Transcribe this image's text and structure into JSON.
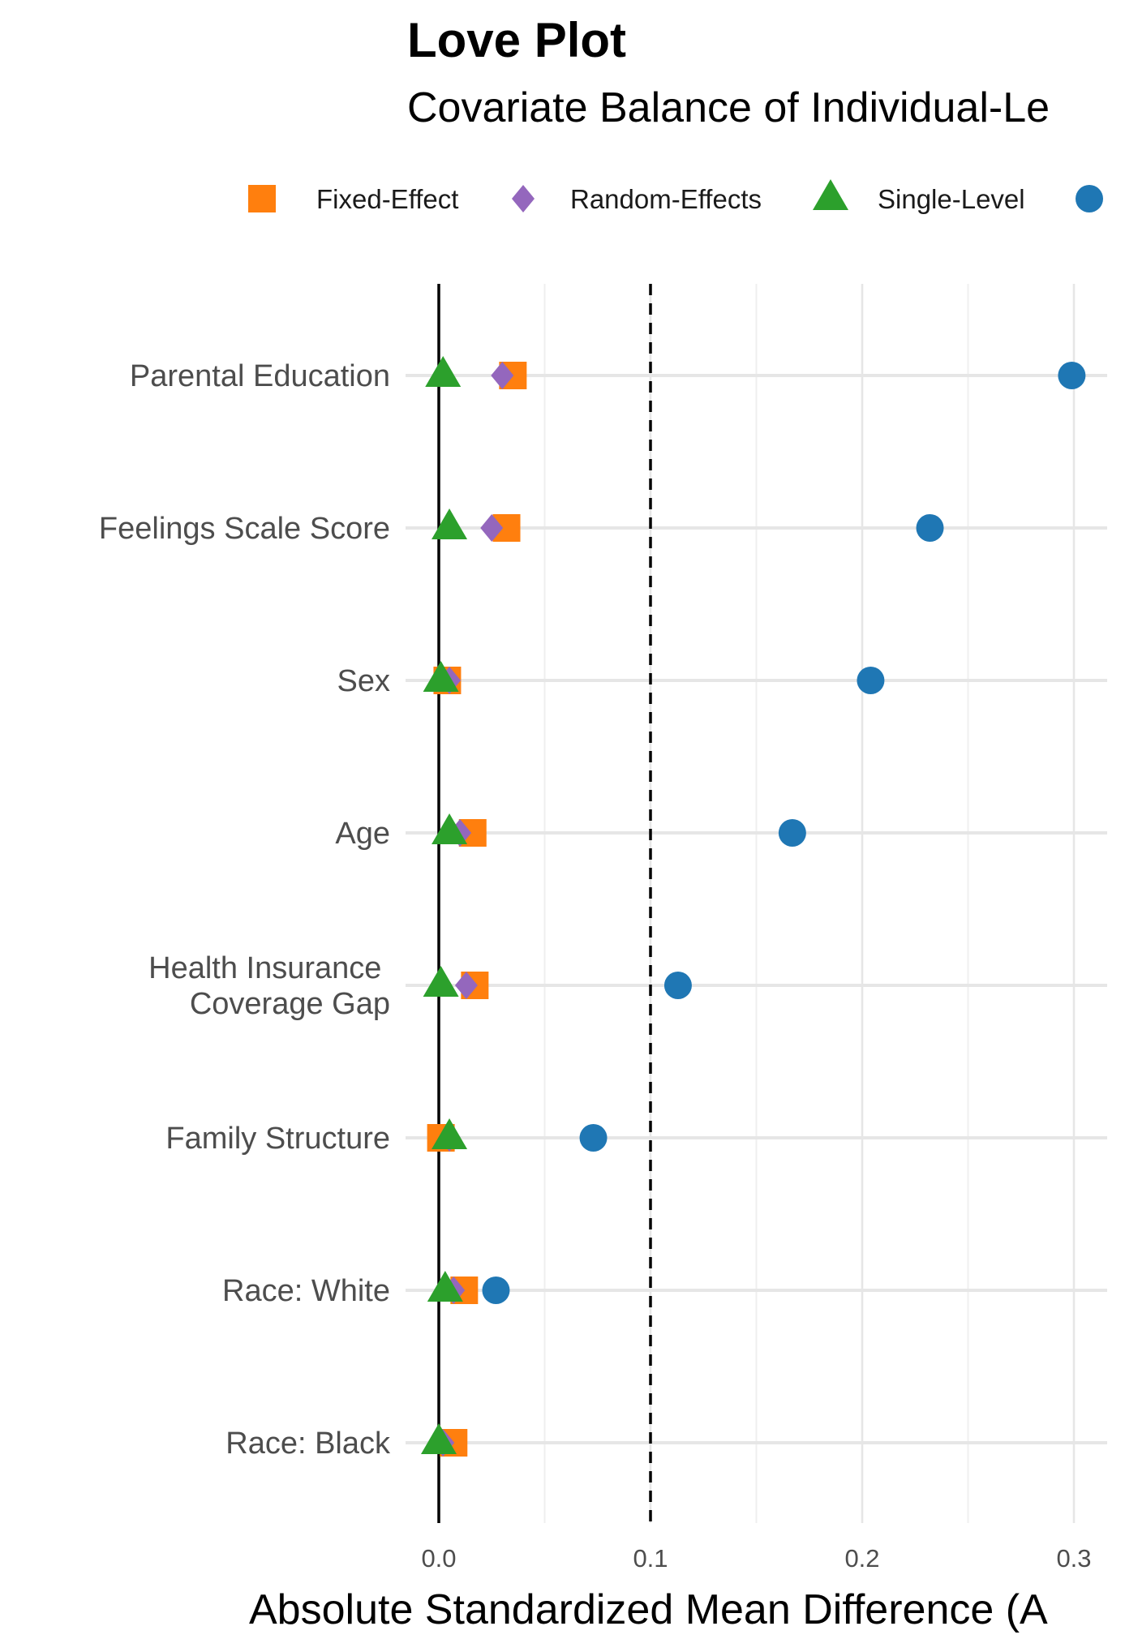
{
  "chart_data": {
    "type": "scatter",
    "title": "Love Plot",
    "subtitle": "Covariate Balance of Individual-Le",
    "xlabel": "Absolute Standardized Mean Difference (A",
    "ylabel": "",
    "xlim": [
      -0.012,
      0.315
    ],
    "x_ticks": [
      "0.0",
      "0.1",
      "0.2",
      "0.3"
    ],
    "x_tick_values": [
      0.0,
      0.1,
      0.2,
      0.3
    ],
    "threshold": 0.1,
    "grid": true,
    "legend_position": "top",
    "categories": [
      "Parental Education",
      "Feelings Scale Score",
      "Sex",
      "Age",
      "Health Insurance \nCoverage Gap",
      "Family Structure",
      "Race: White",
      "Race: Black"
    ],
    "series": [
      {
        "name": "Fixed-Effect",
        "shape": "square",
        "color": "#FF7F0E",
        "values": [
          0.035,
          0.032,
          0.004,
          0.016,
          0.017,
          0.001,
          0.012,
          0.007
        ]
      },
      {
        "name": "Random-Effects",
        "shape": "diamond",
        "color": "#9467BD",
        "values": [
          0.03,
          0.025,
          0.005,
          0.01,
          0.013,
          0.005,
          0.007,
          0.002
        ]
      },
      {
        "name": "Single-Level",
        "shape": "triangle",
        "color": "#2CA02C",
        "values": [
          0.002,
          0.005,
          0.001,
          0.005,
          0.001,
          0.005,
          0.003,
          0.0
        ]
      },
      {
        "name": "",
        "shape": "circle",
        "color": "#1F77B4",
        "values": [
          0.299,
          0.232,
          0.204,
          0.167,
          0.113,
          0.073,
          0.027,
          null
        ]
      }
    ]
  }
}
